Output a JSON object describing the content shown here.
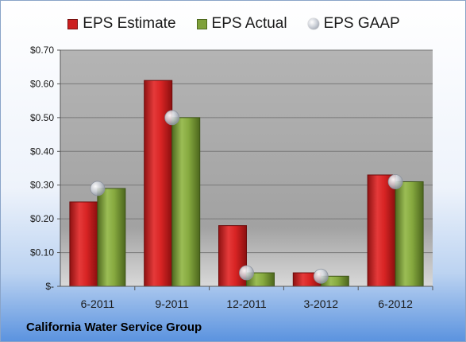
{
  "company_name": "California Water Service Group",
  "colors": {
    "estimate": "#cc1f1f",
    "actual": "#7fa13a",
    "gaap": "#c9cdd4",
    "plot_bg": "#a8a8a8"
  },
  "chart_data": {
    "type": "bar",
    "categories": [
      "6-2011",
      "9-2011",
      "12-2011",
      "3-2012",
      "6-2012"
    ],
    "series": [
      {
        "name": "EPS Estimate",
        "values": [
          0.25,
          0.61,
          0.18,
          0.04,
          0.33
        ],
        "marker": "bar"
      },
      {
        "name": "EPS Actual",
        "values": [
          0.29,
          0.5,
          0.04,
          0.03,
          0.31
        ],
        "marker": "bar"
      },
      {
        "name": "EPS GAAP",
        "values": [
          0.29,
          0.5,
          0.04,
          0.03,
          0.31
        ],
        "marker": "circle"
      }
    ],
    "ylim": [
      0,
      0.7
    ],
    "yticks": [
      0,
      0.1,
      0.2,
      0.3,
      0.4,
      0.5,
      0.6,
      0.7
    ],
    "ytick_labels": [
      "$-",
      "$0.10",
      "$0.20",
      "$0.30",
      "$0.40",
      "$0.50",
      "$0.60",
      "$0.70"
    ],
    "legend_position": "top",
    "grid": true
  }
}
